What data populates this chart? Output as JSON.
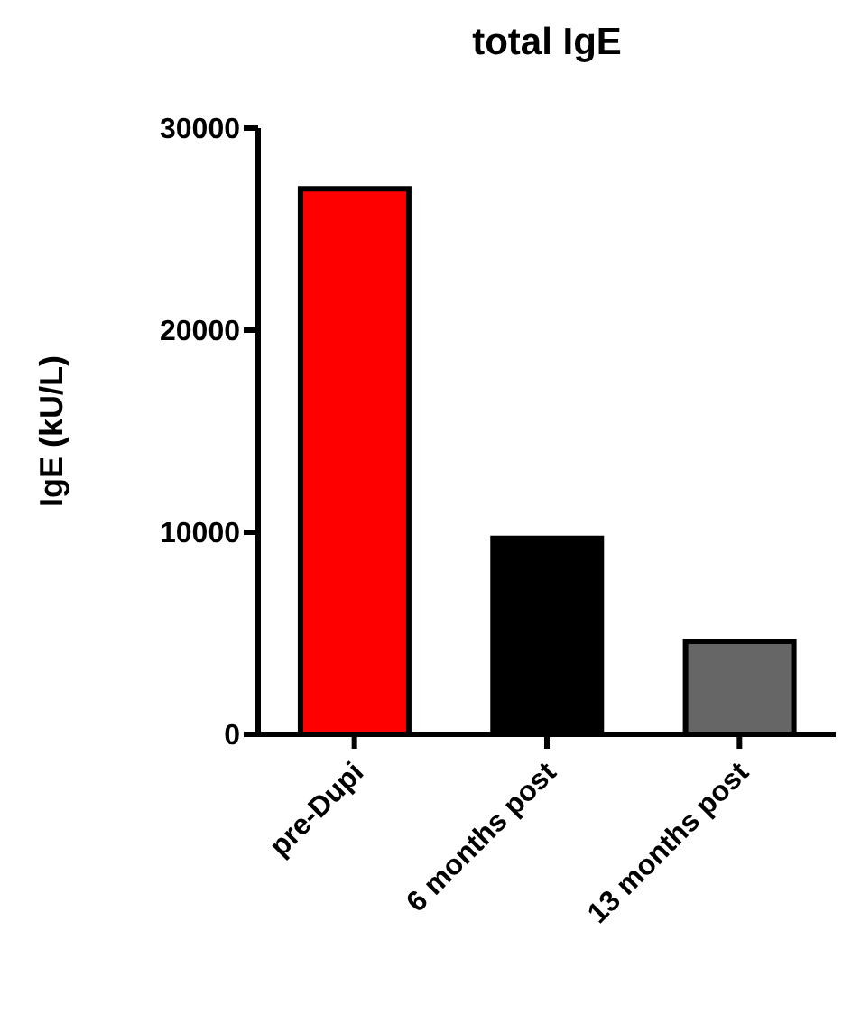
{
  "chart_data": {
    "type": "bar",
    "title": "total IgE",
    "ylabel": "IgE (kU/L)",
    "categories": [
      "pre-Dupi",
      "6 months post",
      "13 months post"
    ],
    "values": [
      27000,
      9700,
      4600
    ],
    "colors": [
      "#ff0000",
      "#000000",
      "#666666"
    ],
    "ylim": [
      0,
      30000
    ],
    "yticks": [
      0,
      10000,
      20000,
      30000
    ],
    "grid": false,
    "legend": false
  }
}
